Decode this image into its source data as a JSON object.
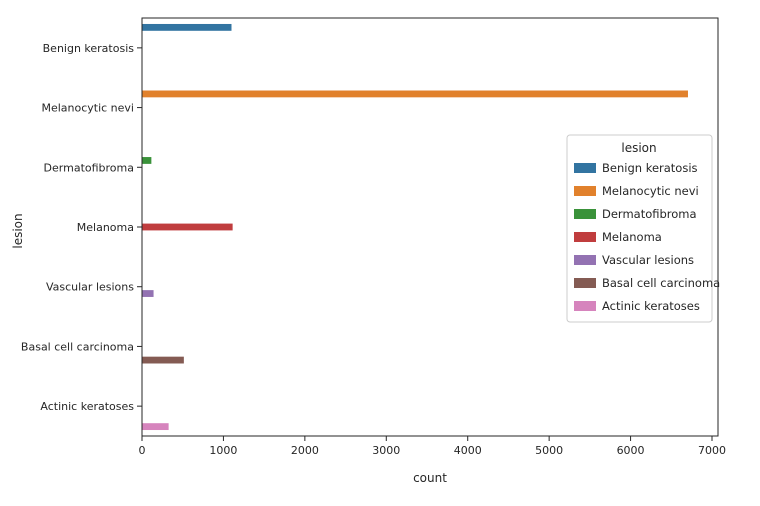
{
  "chart_data": {
    "type": "bar",
    "orientation": "horizontal",
    "xlabel": "count",
    "ylabel": "lesion",
    "xlim": [
      0,
      7000
    ],
    "x_ticks": [
      0,
      1000,
      2000,
      3000,
      4000,
      5000,
      6000,
      7000
    ],
    "categories": [
      "Benign keratosis",
      "Melanocytic nevi",
      "Dermatofibroma",
      "Melanoma",
      "Vascular lesions",
      "Basal cell carcinoma",
      "Actinic keratoses"
    ],
    "legend": {
      "title": "lesion",
      "placement": "center-right",
      "entries": [
        "Benign keratosis",
        "Melanocytic nevi",
        "Dermatofibroma",
        "Melanoma",
        "Vascular lesions",
        "Basal cell carcinoma",
        "Actinic keratoses"
      ]
    },
    "series": [
      {
        "name": "Benign keratosis",
        "color": "#3274a1",
        "values": [
          1099,
          0,
          0,
          0,
          0,
          0,
          0
        ]
      },
      {
        "name": "Melanocytic nevi",
        "color": "#e1812c",
        "values": [
          0,
          6705,
          0,
          0,
          0,
          0,
          0
        ]
      },
      {
        "name": "Dermatofibroma",
        "color": "#3a923a",
        "values": [
          0,
          0,
          115,
          0,
          0,
          0,
          0
        ]
      },
      {
        "name": "Melanoma",
        "color": "#c03d3e",
        "values": [
          0,
          0,
          0,
          1113,
          0,
          0,
          0
        ]
      },
      {
        "name": "Vascular lesions",
        "color": "#9372b2",
        "values": [
          0,
          0,
          0,
          0,
          142,
          0,
          0
        ]
      },
      {
        "name": "Basal cell carcinoma",
        "color": "#845b53",
        "values": [
          0,
          0,
          0,
          0,
          0,
          514,
          0
        ]
      },
      {
        "name": "Actinic keratoses",
        "color": "#d684bd",
        "values": [
          0,
          0,
          0,
          0,
          0,
          0,
          327
        ]
      }
    ],
    "grid": false
  }
}
